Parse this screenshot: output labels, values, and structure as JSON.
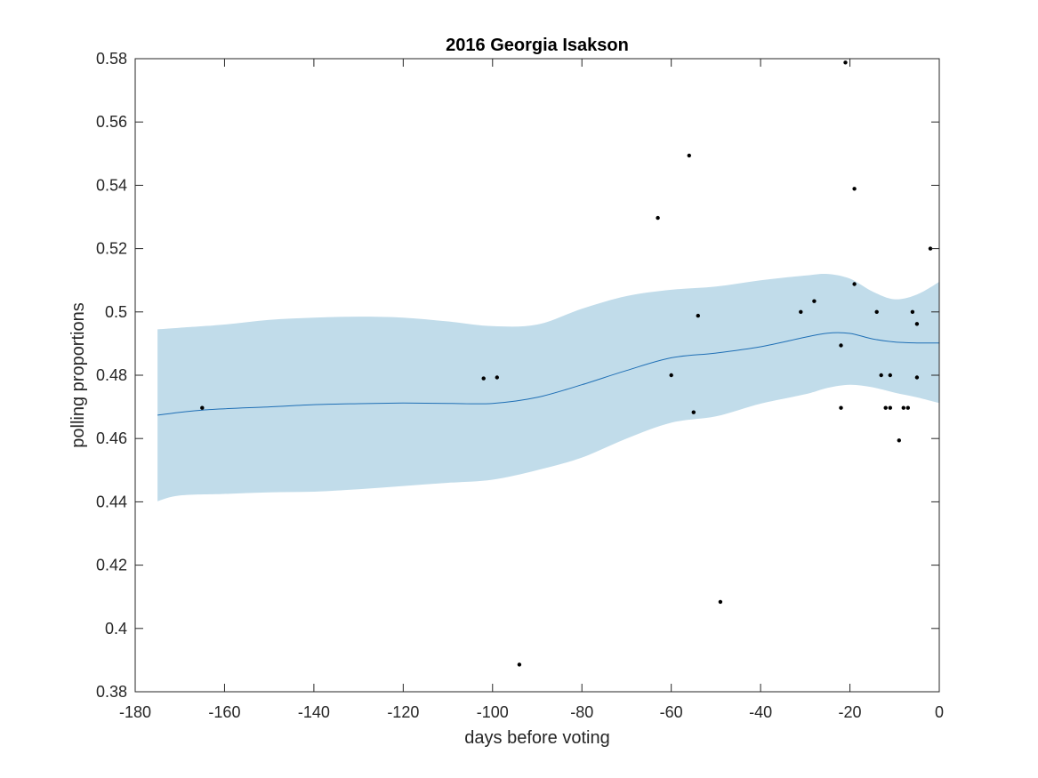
{
  "chart_data": {
    "type": "line",
    "title": "2016 Georgia Isakson",
    "xlabel": "days before voting",
    "ylabel": "polling proportions",
    "xlim": [
      -180,
      0
    ],
    "ylim": [
      0.38,
      0.58
    ],
    "x_ticks": [
      -180,
      -160,
      -140,
      -120,
      -100,
      -80,
      -60,
      -40,
      -20,
      0
    ],
    "x_tick_labels": [
      "-180",
      "-160",
      "-140",
      "-120",
      "-100",
      "-80",
      "-60",
      "-40",
      "-20",
      "0"
    ],
    "y_ticks": [
      0.38,
      0.4,
      0.42,
      0.44,
      0.46,
      0.48,
      0.5,
      0.52,
      0.54,
      0.56,
      0.58
    ],
    "y_tick_labels": [
      "0.38",
      "0.4",
      "0.42",
      "0.44",
      "0.46",
      "0.48",
      "0.5",
      "0.52",
      "0.54",
      "0.56",
      "0.58"
    ],
    "grid": false,
    "colors": {
      "mean_line": "#1f6fb5",
      "band": "#c1dcea",
      "points": "#000000",
      "axes": "#262626"
    },
    "series": [
      {
        "type": "line",
        "x": [
          -175,
          -165,
          -150,
          -140,
          -130,
          -120,
          -110,
          -100,
          -90,
          -80,
          -70,
          -60,
          -50,
          -40,
          -30,
          -25,
          -20,
          -15,
          -10,
          -5,
          0
        ],
        "y": [
          0.4674,
          0.469,
          0.47,
          0.4707,
          0.471,
          0.4712,
          0.4711,
          0.4711,
          0.473,
          0.477,
          0.4815,
          0.4855,
          0.487,
          0.489,
          0.492,
          0.4933,
          0.4932,
          0.4915,
          0.4905,
          0.4902,
          0.4902
        ]
      },
      {
        "type": "area",
        "x": [
          -175,
          -170,
          -160,
          -150,
          -140,
          -130,
          -120,
          -110,
          -100,
          -90,
          -80,
          -70,
          -60,
          -50,
          -40,
          -30,
          -25,
          -20,
          -15,
          -10,
          -5,
          0
        ],
        "upper": [
          0.4945,
          0.495,
          0.496,
          0.4975,
          0.4982,
          0.4985,
          0.4982,
          0.497,
          0.4955,
          0.496,
          0.501,
          0.505,
          0.507,
          0.508,
          0.51,
          0.5115,
          0.512,
          0.5105,
          0.5065,
          0.504,
          0.5055,
          0.5095
        ],
        "lower": [
          0.4402,
          0.442,
          0.4425,
          0.443,
          0.4432,
          0.444,
          0.445,
          0.446,
          0.447,
          0.45,
          0.454,
          0.46,
          0.465,
          0.467,
          0.471,
          0.474,
          0.476,
          0.477,
          0.4762,
          0.4745,
          0.473,
          0.4712
        ]
      },
      {
        "type": "scatter",
        "x": [
          -165,
          -102,
          -99,
          -94,
          -63,
          -60,
          -56,
          -55,
          -54,
          -49,
          -31,
          -28,
          -22,
          -22,
          -21,
          -19,
          -19,
          -14,
          -13,
          -12,
          -11,
          -11,
          -9,
          -8,
          -7,
          -6,
          -5,
          -5,
          -2
        ],
        "y": [
          0.4697,
          0.479,
          0.4793,
          0.3886,
          0.5297,
          0.48,
          0.5494,
          0.4683,
          0.4988,
          0.4084,
          0.5,
          0.5034,
          0.4894,
          0.4697,
          0.5788,
          0.5389,
          0.5088,
          0.5,
          0.48,
          0.4697,
          0.48,
          0.4697,
          0.4594,
          0.4697,
          0.4697,
          0.5,
          0.4962,
          0.4793,
          0.52
        ]
      }
    ]
  }
}
